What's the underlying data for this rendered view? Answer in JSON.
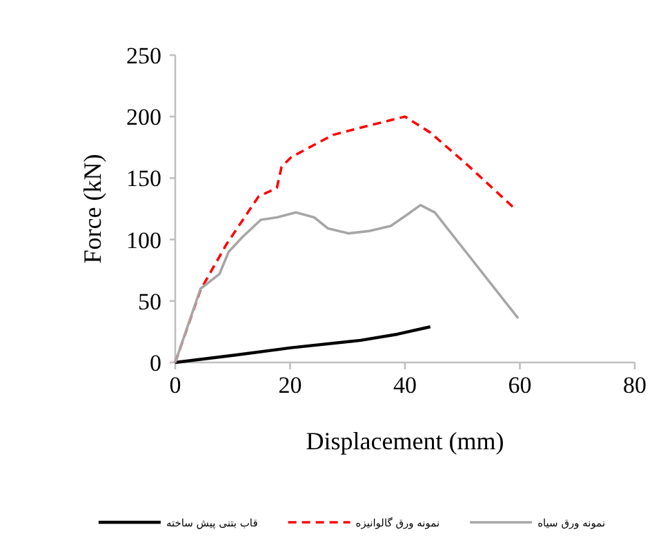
{
  "chart_data": {
    "type": "line",
    "xlabel": "Displacement (mm)",
    "ylabel": "Force (kN)",
    "xlim": [
      0,
      80
    ],
    "xticks": [
      0,
      20,
      40,
      60,
      80
    ],
    "ylim": [
      0,
      250
    ],
    "yticks": [
      0,
      50,
      100,
      150,
      200,
      250
    ],
    "grid": false,
    "legend": "bottom",
    "series": [
      {
        "name": "قاب بتنی پیش ساخته",
        "color": "#000000",
        "line_style": "solid",
        "x": [
          0,
          10.5,
          20.2,
          32.3,
          38.7,
          44.4
        ],
        "values": [
          0,
          6,
          12,
          18,
          23,
          29
        ]
      },
      {
        "name": "نمونه ورق گالوانیزه",
        "color": "#ff0000",
        "line_style": "dashed",
        "x": [
          0,
          4.4,
          8.9,
          14.5,
          17.7,
          18.5,
          20.2,
          27.4,
          32.3,
          40,
          44.4,
          50.8,
          58.9
        ],
        "values": [
          0,
          59,
          96,
          135,
          142,
          159,
          167,
          185,
          191,
          200,
          187,
          161,
          126
        ]
      },
      {
        "name": "نمونه ورق سیاه",
        "color": "#a6a6a6",
        "line_style": "solid",
        "x": [
          0,
          4.4,
          7.7,
          9.3,
          11.7,
          14.9,
          17.7,
          21,
          24.2,
          26.6,
          30.2,
          33.9,
          37.5,
          40.3,
          42.7,
          45.2,
          48.4,
          59.7
        ],
        "values": [
          0,
          60,
          72,
          90,
          102,
          116,
          118,
          122,
          118,
          109,
          105,
          107,
          111,
          120,
          128,
          122,
          103,
          36
        ]
      }
    ]
  }
}
